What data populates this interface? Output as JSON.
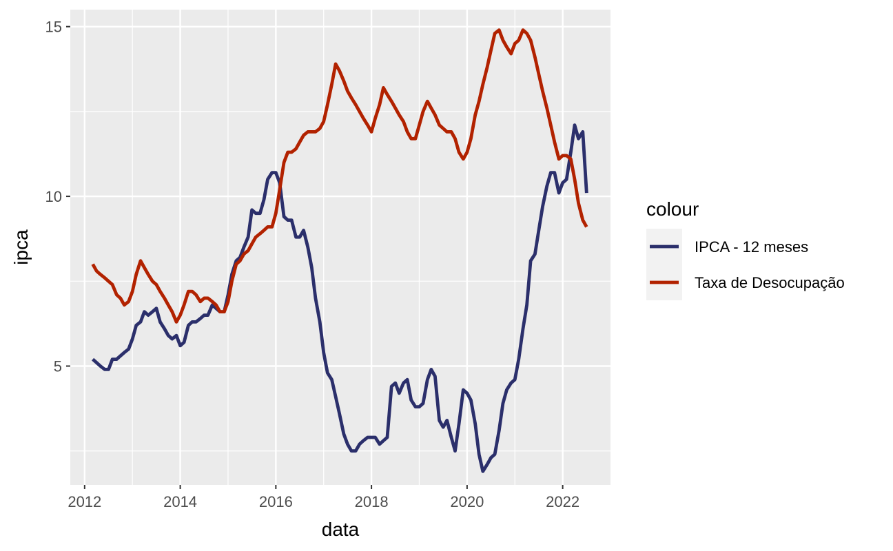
{
  "chart_data": {
    "type": "line",
    "xlabel": "data",
    "ylabel": "ipca",
    "xlim": [
      2011.7,
      2023.0
    ],
    "ylim": [
      1.5,
      15.5
    ],
    "x_ticks": [
      2012,
      2014,
      2016,
      2018,
      2020,
      2022
    ],
    "y_ticks": [
      5,
      10,
      15
    ],
    "grid": true,
    "legend": {
      "title": "colour",
      "position": "right"
    },
    "series": [
      {
        "name": "IPCA - 12 meses",
        "color": "#2b2f6b",
        "points": [
          [
            2012.17,
            5.2
          ],
          [
            2012.25,
            5.1
          ],
          [
            2012.33,
            5.0
          ],
          [
            2012.42,
            4.9
          ],
          [
            2012.5,
            4.9
          ],
          [
            2012.58,
            5.2
          ],
          [
            2012.67,
            5.2
          ],
          [
            2012.75,
            5.3
          ],
          [
            2012.83,
            5.4
          ],
          [
            2012.92,
            5.5
          ],
          [
            2013.0,
            5.8
          ],
          [
            2013.08,
            6.2
          ],
          [
            2013.17,
            6.3
          ],
          [
            2013.25,
            6.6
          ],
          [
            2013.33,
            6.5
          ],
          [
            2013.42,
            6.6
          ],
          [
            2013.5,
            6.7
          ],
          [
            2013.58,
            6.3
          ],
          [
            2013.67,
            6.1
          ],
          [
            2013.75,
            5.9
          ],
          [
            2013.83,
            5.8
          ],
          [
            2013.92,
            5.9
          ],
          [
            2014.0,
            5.6
          ],
          [
            2014.08,
            5.7
          ],
          [
            2014.17,
            6.2
          ],
          [
            2014.25,
            6.3
          ],
          [
            2014.33,
            6.3
          ],
          [
            2014.42,
            6.4
          ],
          [
            2014.5,
            6.5
          ],
          [
            2014.58,
            6.5
          ],
          [
            2014.67,
            6.8
          ],
          [
            2014.75,
            6.7
          ],
          [
            2014.83,
            6.6
          ],
          [
            2014.92,
            6.6
          ],
          [
            2015.0,
            7.1
          ],
          [
            2015.08,
            7.7
          ],
          [
            2015.17,
            8.1
          ],
          [
            2015.25,
            8.2
          ],
          [
            2015.33,
            8.5
          ],
          [
            2015.42,
            8.8
          ],
          [
            2015.5,
            9.6
          ],
          [
            2015.58,
            9.5
          ],
          [
            2015.67,
            9.5
          ],
          [
            2015.75,
            9.9
          ],
          [
            2015.83,
            10.5
          ],
          [
            2015.92,
            10.7
          ],
          [
            2016.0,
            10.7
          ],
          [
            2016.08,
            10.4
          ],
          [
            2016.17,
            9.4
          ],
          [
            2016.25,
            9.3
          ],
          [
            2016.33,
            9.3
          ],
          [
            2016.42,
            8.8
          ],
          [
            2016.5,
            8.8
          ],
          [
            2016.58,
            9.0
          ],
          [
            2016.67,
            8.5
          ],
          [
            2016.75,
            7.9
          ],
          [
            2016.83,
            7.0
          ],
          [
            2016.92,
            6.3
          ],
          [
            2017.0,
            5.4
          ],
          [
            2017.08,
            4.8
          ],
          [
            2017.17,
            4.6
          ],
          [
            2017.25,
            4.1
          ],
          [
            2017.33,
            3.6
          ],
          [
            2017.42,
            3.0
          ],
          [
            2017.5,
            2.7
          ],
          [
            2017.58,
            2.5
          ],
          [
            2017.67,
            2.5
          ],
          [
            2017.75,
            2.7
          ],
          [
            2017.83,
            2.8
          ],
          [
            2017.92,
            2.9
          ],
          [
            2018.0,
            2.9
          ],
          [
            2018.08,
            2.9
          ],
          [
            2018.17,
            2.7
          ],
          [
            2018.25,
            2.8
          ],
          [
            2018.33,
            2.9
          ],
          [
            2018.42,
            4.4
          ],
          [
            2018.5,
            4.5
          ],
          [
            2018.58,
            4.2
          ],
          [
            2018.67,
            4.5
          ],
          [
            2018.75,
            4.6
          ],
          [
            2018.83,
            4.0
          ],
          [
            2018.92,
            3.8
          ],
          [
            2019.0,
            3.8
          ],
          [
            2019.08,
            3.9
          ],
          [
            2019.17,
            4.6
          ],
          [
            2019.25,
            4.9
          ],
          [
            2019.33,
            4.7
          ],
          [
            2019.42,
            3.4
          ],
          [
            2019.5,
            3.2
          ],
          [
            2019.58,
            3.4
          ],
          [
            2019.67,
            2.9
          ],
          [
            2019.75,
            2.5
          ],
          [
            2019.83,
            3.3
          ],
          [
            2019.92,
            4.3
          ],
          [
            2020.0,
            4.2
          ],
          [
            2020.08,
            4.0
          ],
          [
            2020.17,
            3.3
          ],
          [
            2020.25,
            2.4
          ],
          [
            2020.33,
            1.9
          ],
          [
            2020.42,
            2.1
          ],
          [
            2020.5,
            2.3
          ],
          [
            2020.58,
            2.4
          ],
          [
            2020.67,
            3.1
          ],
          [
            2020.75,
            3.9
          ],
          [
            2020.83,
            4.3
          ],
          [
            2020.92,
            4.5
          ],
          [
            2021.0,
            4.6
          ],
          [
            2021.08,
            5.2
          ],
          [
            2021.17,
            6.1
          ],
          [
            2021.25,
            6.8
          ],
          [
            2021.33,
            8.1
          ],
          [
            2021.42,
            8.3
          ],
          [
            2021.5,
            9.0
          ],
          [
            2021.58,
            9.7
          ],
          [
            2021.67,
            10.3
          ],
          [
            2021.75,
            10.7
          ],
          [
            2021.83,
            10.7
          ],
          [
            2021.92,
            10.1
          ],
          [
            2022.0,
            10.4
          ],
          [
            2022.08,
            10.5
          ],
          [
            2022.17,
            11.3
          ],
          [
            2022.25,
            12.1
          ],
          [
            2022.33,
            11.7
          ],
          [
            2022.42,
            11.9
          ],
          [
            2022.5,
            10.1
          ]
        ]
      },
      {
        "name": "Taxa de Desocupação",
        "color": "#b22200",
        "points": [
          [
            2012.17,
            8.0
          ],
          [
            2012.25,
            7.8
          ],
          [
            2012.33,
            7.7
          ],
          [
            2012.42,
            7.6
          ],
          [
            2012.5,
            7.5
          ],
          [
            2012.58,
            7.4
          ],
          [
            2012.67,
            7.1
          ],
          [
            2012.75,
            7.0
          ],
          [
            2012.83,
            6.8
          ],
          [
            2012.92,
            6.9
          ],
          [
            2013.0,
            7.2
          ],
          [
            2013.08,
            7.7
          ],
          [
            2013.17,
            8.1
          ],
          [
            2013.25,
            7.9
          ],
          [
            2013.33,
            7.7
          ],
          [
            2013.42,
            7.5
          ],
          [
            2013.5,
            7.4
          ],
          [
            2013.58,
            7.2
          ],
          [
            2013.67,
            7.0
          ],
          [
            2013.75,
            6.8
          ],
          [
            2013.83,
            6.6
          ],
          [
            2013.92,
            6.3
          ],
          [
            2014.0,
            6.5
          ],
          [
            2014.08,
            6.8
          ],
          [
            2014.17,
            7.2
          ],
          [
            2014.25,
            7.2
          ],
          [
            2014.33,
            7.1
          ],
          [
            2014.42,
            6.9
          ],
          [
            2014.5,
            7.0
          ],
          [
            2014.58,
            7.0
          ],
          [
            2014.67,
            6.9
          ],
          [
            2014.75,
            6.8
          ],
          [
            2014.83,
            6.6
          ],
          [
            2014.92,
            6.6
          ],
          [
            2015.0,
            6.9
          ],
          [
            2015.08,
            7.5
          ],
          [
            2015.17,
            8.0
          ],
          [
            2015.25,
            8.1
          ],
          [
            2015.33,
            8.3
          ],
          [
            2015.42,
            8.4
          ],
          [
            2015.5,
            8.6
          ],
          [
            2015.58,
            8.8
          ],
          [
            2015.67,
            8.9
          ],
          [
            2015.75,
            9.0
          ],
          [
            2015.83,
            9.1
          ],
          [
            2015.92,
            9.1
          ],
          [
            2016.0,
            9.5
          ],
          [
            2016.08,
            10.2
          ],
          [
            2016.17,
            11.0
          ],
          [
            2016.25,
            11.3
          ],
          [
            2016.33,
            11.3
          ],
          [
            2016.42,
            11.4
          ],
          [
            2016.5,
            11.6
          ],
          [
            2016.58,
            11.8
          ],
          [
            2016.67,
            11.9
          ],
          [
            2016.75,
            11.9
          ],
          [
            2016.83,
            11.9
          ],
          [
            2016.92,
            12.0
          ],
          [
            2017.0,
            12.2
          ],
          [
            2017.08,
            12.7
          ],
          [
            2017.17,
            13.3
          ],
          [
            2017.25,
            13.9
          ],
          [
            2017.33,
            13.7
          ],
          [
            2017.42,
            13.4
          ],
          [
            2017.5,
            13.1
          ],
          [
            2017.58,
            12.9
          ],
          [
            2017.67,
            12.7
          ],
          [
            2017.75,
            12.5
          ],
          [
            2017.83,
            12.3
          ],
          [
            2017.92,
            12.1
          ],
          [
            2018.0,
            11.9
          ],
          [
            2018.08,
            12.3
          ],
          [
            2018.17,
            12.7
          ],
          [
            2018.25,
            13.2
          ],
          [
            2018.33,
            13.0
          ],
          [
            2018.42,
            12.8
          ],
          [
            2018.5,
            12.6
          ],
          [
            2018.58,
            12.4
          ],
          [
            2018.67,
            12.2
          ],
          [
            2018.75,
            11.9
          ],
          [
            2018.83,
            11.7
          ],
          [
            2018.92,
            11.7
          ],
          [
            2019.0,
            12.1
          ],
          [
            2019.08,
            12.5
          ],
          [
            2019.17,
            12.8
          ],
          [
            2019.25,
            12.6
          ],
          [
            2019.33,
            12.4
          ],
          [
            2019.42,
            12.1
          ],
          [
            2019.5,
            12.0
          ],
          [
            2019.58,
            11.9
          ],
          [
            2019.67,
            11.9
          ],
          [
            2019.75,
            11.7
          ],
          [
            2019.83,
            11.3
          ],
          [
            2019.92,
            11.1
          ],
          [
            2020.0,
            11.3
          ],
          [
            2020.08,
            11.7
          ],
          [
            2020.17,
            12.4
          ],
          [
            2020.25,
            12.8
          ],
          [
            2020.33,
            13.3
          ],
          [
            2020.42,
            13.8
          ],
          [
            2020.5,
            14.3
          ],
          [
            2020.58,
            14.8
          ],
          [
            2020.67,
            14.9
          ],
          [
            2020.75,
            14.6
          ],
          [
            2020.83,
            14.4
          ],
          [
            2020.92,
            14.2
          ],
          [
            2021.0,
            14.5
          ],
          [
            2021.08,
            14.6
          ],
          [
            2021.17,
            14.9
          ],
          [
            2021.25,
            14.8
          ],
          [
            2021.33,
            14.6
          ],
          [
            2021.42,
            14.1
          ],
          [
            2021.5,
            13.6
          ],
          [
            2021.58,
            13.1
          ],
          [
            2021.67,
            12.6
          ],
          [
            2021.75,
            12.1
          ],
          [
            2021.83,
            11.6
          ],
          [
            2021.92,
            11.1
          ],
          [
            2022.0,
            11.2
          ],
          [
            2022.08,
            11.2
          ],
          [
            2022.17,
            11.1
          ],
          [
            2022.25,
            10.5
          ],
          [
            2022.33,
            9.8
          ],
          [
            2022.42,
            9.3
          ],
          [
            2022.5,
            9.1
          ]
        ]
      }
    ]
  }
}
